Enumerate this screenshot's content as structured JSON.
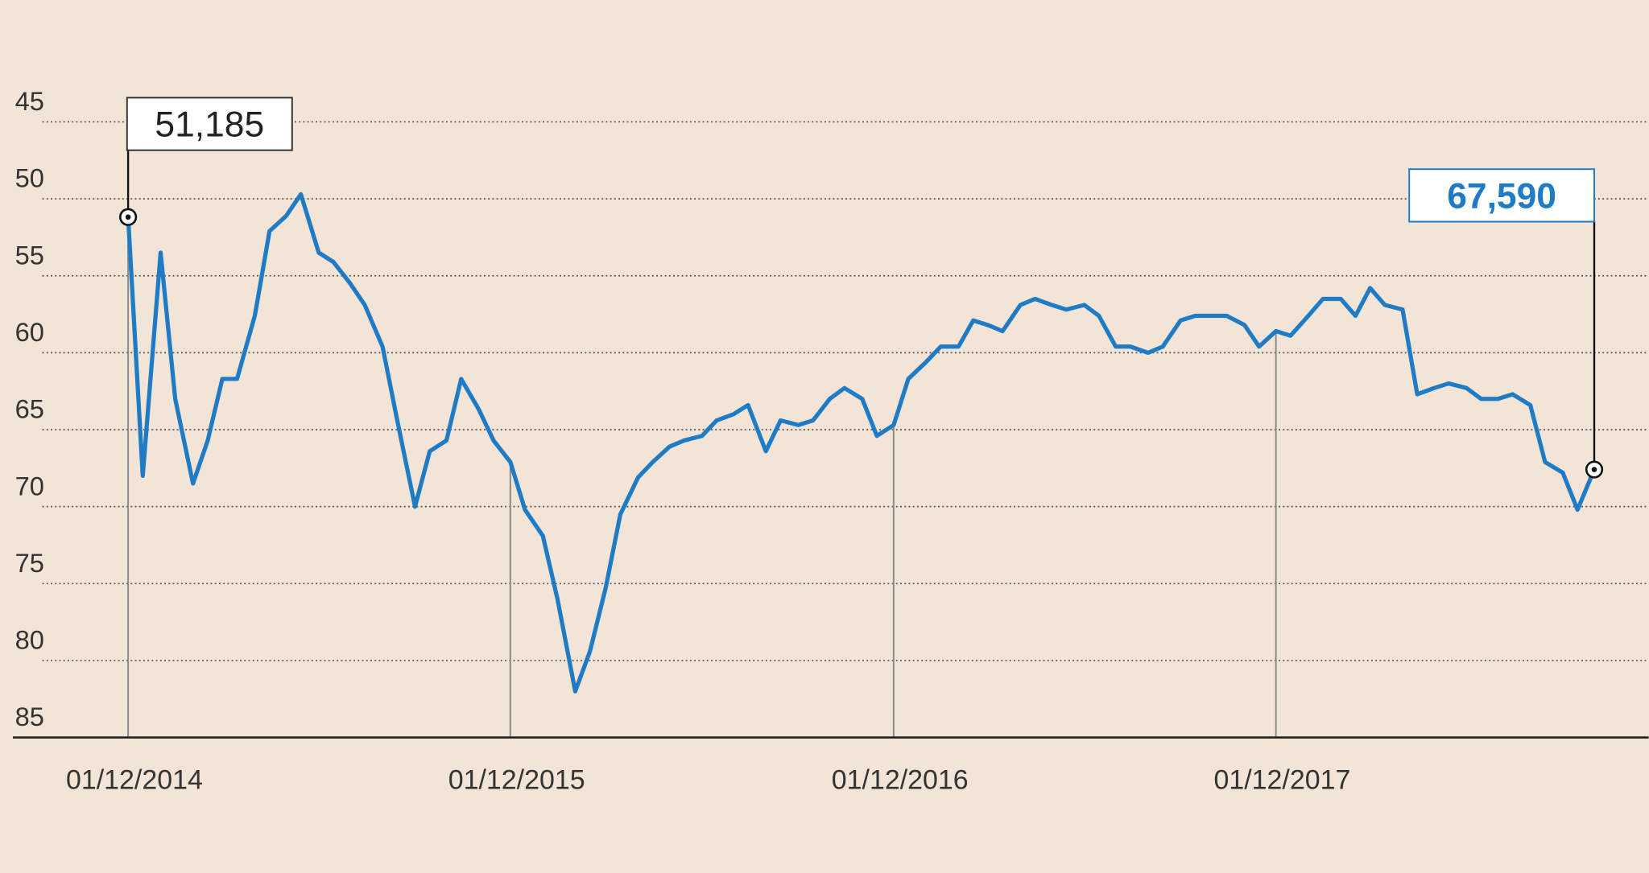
{
  "chart_data": {
    "type": "line",
    "x": [
      "01/12/2014",
      "15/12/2014",
      "01/01/2015",
      "15/01/2015",
      "01/02/2015",
      "15/02/2015",
      "01/03/2015",
      "15/03/2015",
      "01/04/2015",
      "15/04/2015",
      "01/05/2015",
      "15/05/2015",
      "01/06/2015",
      "15/06/2015",
      "01/07/2015",
      "15/07/2015",
      "01/08/2015",
      "15/08/2015",
      "01/09/2015",
      "15/09/2015",
      "01/10/2015",
      "15/10/2015",
      "01/11/2015",
      "15/11/2015",
      "01/12/2015",
      "15/12/2015",
      "01/01/2016",
      "15/01/2016",
      "01/02/2016",
      "15/02/2016",
      "01/03/2016",
      "15/03/2016",
      "01/04/2016",
      "15/04/2016",
      "01/05/2016",
      "15/05/2016",
      "01/06/2016",
      "15/06/2016",
      "01/07/2016",
      "15/07/2016",
      "01/08/2016",
      "15/08/2016",
      "01/09/2016",
      "15/09/2016",
      "01/10/2016",
      "15/10/2016",
      "01/11/2016",
      "15/11/2016",
      "01/12/2016",
      "15/12/2016",
      "01/01/2017",
      "15/01/2017",
      "01/02/2017",
      "15/02/2017",
      "01/03/2017",
      "15/03/2017",
      "01/04/2017",
      "15/04/2017",
      "01/05/2017",
      "15/05/2017",
      "01/06/2017",
      "15/06/2017",
      "01/07/2017",
      "15/07/2017",
      "01/08/2017",
      "15/08/2017",
      "01/09/2017",
      "15/09/2017",
      "01/10/2017",
      "15/10/2017",
      "01/11/2017",
      "15/11/2017",
      "01/12/2017",
      "15/12/2017",
      "01/01/2018",
      "15/01/2018",
      "01/02/2018",
      "15/02/2018",
      "01/03/2018",
      "15/03/2018",
      "01/04/2018",
      "15/04/2018",
      "01/05/2018",
      "15/05/2018",
      "01/06/2018",
      "15/06/2018",
      "01/07/2018",
      "15/07/2018",
      "01/08/2018",
      "15/08/2018",
      "01/09/2018",
      "15/09/2018",
      "01/10/2018"
    ],
    "series": [
      {
        "color": "#1f7bc4",
        "values": [
          51.185,
          68,
          53.5,
          63.0,
          68.5,
          65.7,
          61.7,
          61.7,
          57.6,
          52.1,
          51.1,
          49.7,
          53.5,
          54.1,
          55.5,
          56.9,
          59.6,
          64.4,
          70,
          66.4,
          65.7,
          61.7,
          63.7,
          65.7,
          67.1,
          70.2,
          71.9,
          76.0,
          82,
          79.4,
          75.3,
          70.5,
          68.1,
          67.1,
          66.1,
          65.7,
          65.4,
          64.4,
          64.0,
          63.4,
          66.4,
          64.4,
          64.7,
          64.4,
          63.0,
          62.3,
          63.0,
          65.4,
          64.7,
          61.7,
          60.6,
          59.6,
          59.6,
          57.9,
          58.2,
          58.6,
          56.9,
          56.5,
          56.9,
          57.2,
          56.9,
          57.6,
          59.6,
          59.6,
          60.0,
          59.6,
          57.9,
          57.6,
          57.6,
          57.6,
          58.2,
          59.6,
          58.6,
          58.9,
          57.6,
          56.5,
          56.5,
          57.6,
          55.8,
          56.9,
          57.2,
          62.7,
          62.3,
          62.0,
          62.3,
          63.0,
          63.0,
          62.7,
          63.4,
          67.1,
          67.8,
          70.2,
          67.59
        ],
        "value_labels": [
          "51,185",
          null,
          null,
          null,
          null,
          null,
          null,
          null,
          null,
          null,
          null,
          null,
          null,
          null,
          null,
          null,
          null,
          null,
          null,
          null,
          null,
          null,
          null,
          null,
          null,
          null,
          null,
          null,
          null,
          null,
          null,
          null,
          null,
          null,
          null,
          null,
          null,
          null,
          null,
          null,
          null,
          null,
          null,
          null,
          null,
          null,
          null,
          null,
          null,
          null,
          null,
          null,
          null,
          null,
          null,
          null,
          null,
          null,
          null,
          null,
          null,
          null,
          null,
          null,
          null,
          null,
          null,
          null,
          null,
          null,
          null,
          null,
          null,
          null,
          null,
          null,
          null,
          null,
          null,
          null,
          null,
          null,
          null,
          null,
          null,
          null,
          null,
          null,
          null,
          null,
          null,
          null,
          "67,590"
        ]
      }
    ],
    "xlim": [
      "13/08/2014",
      "22/11/2018"
    ],
    "xticks": [
      "01/12/2014",
      "01/12/2015",
      "01/12/2016",
      "01/12/2017"
    ],
    "ylim": [
      45,
      85
    ],
    "yticks": [
      45,
      50,
      55,
      60,
      65,
      70,
      75,
      80,
      85
    ],
    "y_inverted": true,
    "grid": true
  }
}
